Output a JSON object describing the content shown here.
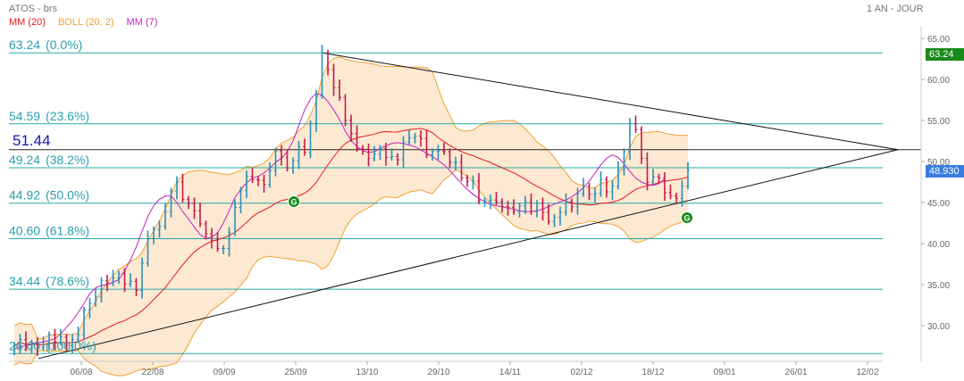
{
  "header": {
    "symbol": "ATOS - brs",
    "period": "1 AN - JOUR"
  },
  "legend": [
    {
      "label": "MM (20)",
      "color": "#e31a1c"
    },
    {
      "label": "BOLL (20, 2)",
      "color": "#f0a030"
    },
    {
      "label": "MM (7)",
      "color": "#c020c0"
    }
  ],
  "badges": {
    "fib_top": {
      "label": "63.24",
      "color": "#1a8a1a"
    },
    "last": {
      "label": "48.930",
      "color": "#3a7de0"
    }
  },
  "chart_data": {
    "type": "candlestick",
    "title": "ATOS - brs",
    "timeframe": "1 AN - JOUR",
    "ylim": [
      25,
      67
    ],
    "y_ticks": [
      "30.00",
      "35.00",
      "40.00",
      "45.00",
      "50.00",
      "55.00",
      "60.00",
      "65.00"
    ],
    "x_ticks": [
      "06/08",
      "22/08",
      "09/09",
      "25/09",
      "13/10",
      "29/10",
      "14/11",
      "02/12",
      "18/12",
      "09/01",
      "26/01",
      "12/02"
    ],
    "fib_levels": [
      {
        "value": 63.24,
        "label": "63.24",
        "pct": "(0.0%)"
      },
      {
        "value": 54.59,
        "label": "54.59",
        "pct": "(23.6%)"
      },
      {
        "value": 49.24,
        "label": "49.24",
        "pct": "(38.2%)"
      },
      {
        "value": 44.92,
        "label": "44.92",
        "pct": "(50.0%)"
      },
      {
        "value": 40.6,
        "label": "40.60",
        "pct": "(61.8%)"
      },
      {
        "value": 34.44,
        "label": "34.44",
        "pct": "(78.6%)"
      },
      {
        "value": 26.6,
        "label": "26.60",
        "pct": "(100.0%)"
      }
    ],
    "marker_line": {
      "value": 51.44,
      "label": "51.44"
    },
    "last_price": 48.93,
    "closes": [
      27.6,
      28.3,
      27.3,
      27.9,
      27.3,
      27.7,
      28.9,
      28.0,
      28.6,
      27.6,
      28.3,
      28.9,
      31.9,
      32.7,
      33.5,
      35.5,
      35.2,
      35.8,
      36.3,
      35.1,
      35.4,
      34.3,
      37.6,
      40.6,
      41.7,
      42.1,
      43.9,
      46.4,
      47.5,
      45.4,
      44.9,
      44.0,
      42.4,
      41.2,
      40.4,
      39.4,
      39.4,
      41.3,
      44.4,
      46.5,
      48.2,
      47.8,
      47.7,
      47.2,
      48.9,
      51.3,
      50.5,
      49.2,
      50.1,
      51.8,
      51.1,
      54.6,
      58.0,
      63.2,
      61.2,
      59.0,
      57.8,
      55.0,
      53.4,
      51.6,
      51.5,
      50.4,
      50.9,
      51.6,
      50.5,
      50.6,
      50.2,
      52.4,
      52.9,
      53.1,
      52.8,
      50.8,
      51.2,
      51.3,
      51.2,
      49.9,
      49.9,
      48.0,
      47.6,
      47.6,
      45.2,
      45.2,
      45.3,
      45.1,
      44.5,
      44.4,
      43.9,
      44.6,
      45.1,
      43.9,
      44.9,
      43.8,
      42.7,
      43.2,
      43.8,
      45.1,
      44.5,
      46.1,
      47.0,
      46.0,
      46.1,
      47.8,
      46.3,
      47.0,
      49.0,
      51.2,
      54.6,
      53.9,
      50.4,
      47.5,
      48.1,
      48.0,
      46.2,
      45.8,
      45.5,
      47.0,
      48.93
    ],
    "mm7": [
      27.2,
      27.4,
      27.6,
      27.8,
      27.9,
      28.0,
      28.2,
      28.4,
      29.0,
      29.8,
      30.6,
      31.6,
      32.7,
      33.9,
      34.6,
      34.9,
      35.0,
      35.3,
      35.6,
      36.7,
      38.0,
      39.6,
      41.5,
      43.3,
      44.6,
      45.4,
      45.8,
      45.8,
      45.0,
      43.9,
      43.0,
      42.0,
      41.1,
      40.6,
      40.8,
      41.3,
      42.5,
      44.0,
      45.6,
      46.6,
      47.4,
      48.0,
      48.2,
      48.6,
      49.2,
      49.9,
      50.4,
      51.2,
      52.5,
      54.4,
      56.3,
      57.6,
      58.3,
      58.1,
      57.3,
      56.3,
      55.1,
      53.7,
      52.6,
      51.8,
      51.3,
      51.1,
      51.2,
      51.6,
      51.9,
      52.2,
      52.3,
      52.2,
      52.0,
      51.8,
      51.4,
      51.0,
      50.6,
      50.1,
      49.6,
      48.9,
      48.1,
      47.3,
      46.6,
      46.0,
      45.5,
      45.1,
      44.8,
      44.6,
      44.5,
      44.3,
      44.2,
      44.0,
      43.9,
      43.9,
      44.0,
      44.2,
      44.5,
      44.8,
      45.1,
      45.3,
      45.7,
      46.2,
      46.8,
      47.6,
      48.6,
      49.6,
      50.4,
      50.8,
      50.5,
      49.7,
      48.8,
      48.0,
      47.5,
      47.2,
      47.1,
      47.3,
      47.9
    ]
  }
}
